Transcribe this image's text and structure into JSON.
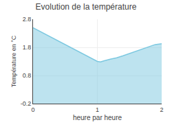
{
  "chart_data": {
    "type": "area",
    "title": "Evolution de la température",
    "xlabel": "heure par heure",
    "ylabel": "Température en °C",
    "x": [
      0,
      0.1,
      0.2,
      0.3,
      0.4,
      0.5,
      0.6,
      0.7,
      0.8,
      0.9,
      1.0,
      1.05,
      1.1,
      1.2,
      1.3,
      1.4,
      1.5,
      1.6,
      1.7,
      1.8,
      1.9,
      2.0
    ],
    "values": [
      2.5,
      2.38,
      2.26,
      2.14,
      2.02,
      1.9,
      1.78,
      1.65,
      1.53,
      1.42,
      1.3,
      1.28,
      1.32,
      1.38,
      1.43,
      1.5,
      1.58,
      1.66,
      1.75,
      1.83,
      1.9,
      1.93
    ],
    "xlim": [
      0,
      2
    ],
    "ylim": [
      -0.2,
      2.8
    ],
    "xticks": [
      0,
      1,
      2
    ],
    "yticks": [
      -0.2,
      0.8,
      1.8,
      2.8
    ],
    "color": "#7cc8e0",
    "grid": true
  }
}
